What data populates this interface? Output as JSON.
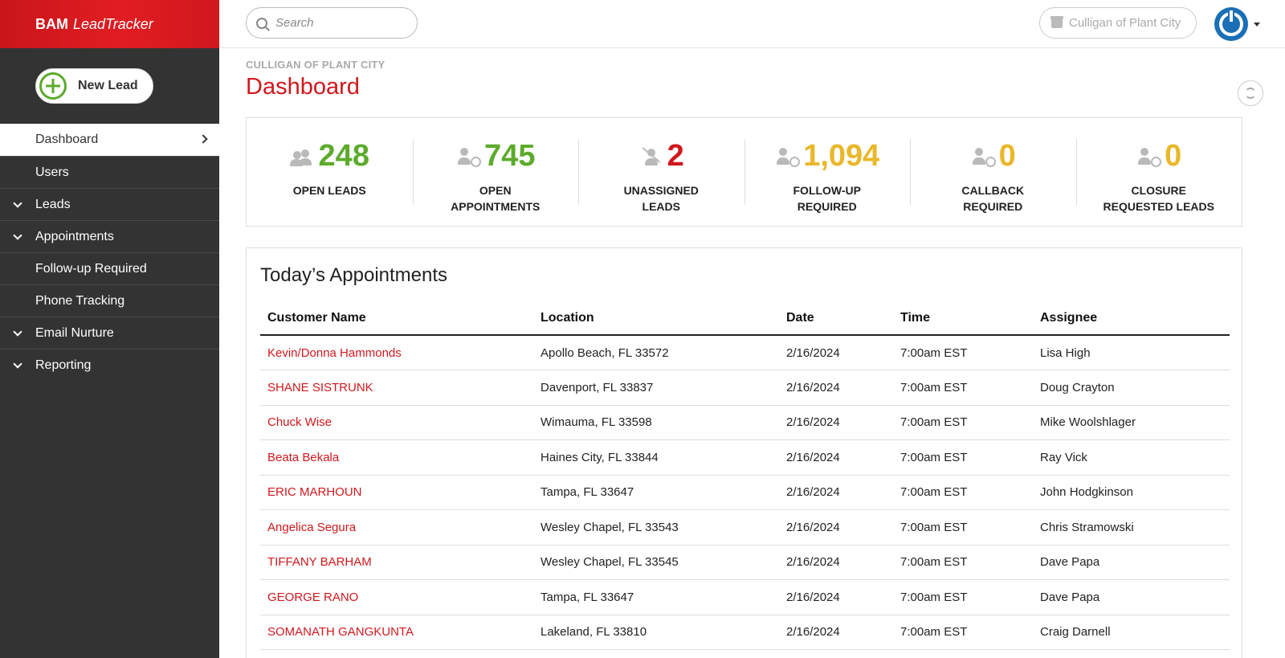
{
  "brand": {
    "bold": "BAM",
    "italic": "LeadTracker"
  },
  "sidebar": {
    "new_lead_label": "New Lead",
    "items": [
      {
        "label": "Dashboard",
        "active": true,
        "expandable": false
      },
      {
        "label": "Users",
        "active": false,
        "expandable": false
      },
      {
        "label": "Leads",
        "active": false,
        "expandable": true
      },
      {
        "label": "Appointments",
        "active": false,
        "expandable": true
      },
      {
        "label": "Follow-up Required",
        "active": false,
        "expandable": false
      },
      {
        "label": "Phone Tracking",
        "active": false,
        "expandable": false
      },
      {
        "label": "Email Nurture",
        "active": false,
        "expandable": true
      },
      {
        "label": "Reporting",
        "active": false,
        "expandable": true
      }
    ]
  },
  "topbar": {
    "search_placeholder": "Search",
    "organization": "Culligan of Plant City"
  },
  "header": {
    "breadcrumb": "CULLIGAN OF PLANT CITY",
    "title": "Dashboard"
  },
  "stats": [
    {
      "value": "248",
      "label_line1": "OPEN LEADS",
      "label_line2": "",
      "color": "#5cab2c",
      "icon": "users-icon"
    },
    {
      "value": "745",
      "label_line1": "OPEN",
      "label_line2": "APPOINTMENTS",
      "color": "#5cab2c",
      "icon": "user-clock-icon"
    },
    {
      "value": "2",
      "label_line1": "UNASSIGNED",
      "label_line2": "LEADS",
      "color": "#d0181d",
      "icon": "user-slash-icon"
    },
    {
      "value": "1,094",
      "label_line1": "FOLLOW-UP",
      "label_line2": "REQUIRED",
      "color": "#e9b72a",
      "icon": "user-clock-icon"
    },
    {
      "value": "0",
      "label_line1": "CALLBACK",
      "label_line2": "REQUIRED",
      "color": "#e9b72a",
      "icon": "user-clock-icon"
    },
    {
      "value": "0",
      "label_line1": "CLOSURE",
      "label_line2": "REQUESTED LEADS",
      "color": "#e9b72a",
      "icon": "user-clock-icon"
    }
  ],
  "appointments": {
    "title": "Today’s Appointments",
    "columns": [
      "Customer Name",
      "Location",
      "Date",
      "Time",
      "Assignee"
    ],
    "rows": [
      [
        "Kevin/Donna Hammonds",
        "Apollo Beach, FL 33572",
        "2/16/2024",
        "7:00am EST",
        "Lisa High"
      ],
      [
        "SHANE SISTRUNK",
        "Davenport, FL 33837",
        "2/16/2024",
        "7:00am EST",
        "Doug Crayton"
      ],
      [
        "Chuck Wise",
        "Wimauma, FL 33598",
        "2/16/2024",
        "7:00am EST",
        "Mike Woolshlager"
      ],
      [
        "Beata Bekala",
        "Haines City, FL 33844",
        "2/16/2024",
        "7:00am EST",
        "Ray Vick"
      ],
      [
        "ERIC MARHOUN",
        "Tampa, FL 33647",
        "2/16/2024",
        "7:00am EST",
        "John Hodgkinson"
      ],
      [
        "Angelica Segura",
        "Wesley Chapel, FL 33543",
        "2/16/2024",
        "7:00am EST",
        "Chris Stramowski"
      ],
      [
        "TIFFANY BARHAM",
        "Wesley Chapel, FL 33545",
        "2/16/2024",
        "7:00am EST",
        "Dave Papa"
      ],
      [
        "GEORGE RANO",
        "Tampa, FL 33647",
        "2/16/2024",
        "7:00am EST",
        "Dave Papa"
      ],
      [
        "SOMANATH GANGKUNTA",
        "Lakeland, FL 33810",
        "2/16/2024",
        "7:00am EST",
        "Craig Darnell"
      ]
    ]
  }
}
